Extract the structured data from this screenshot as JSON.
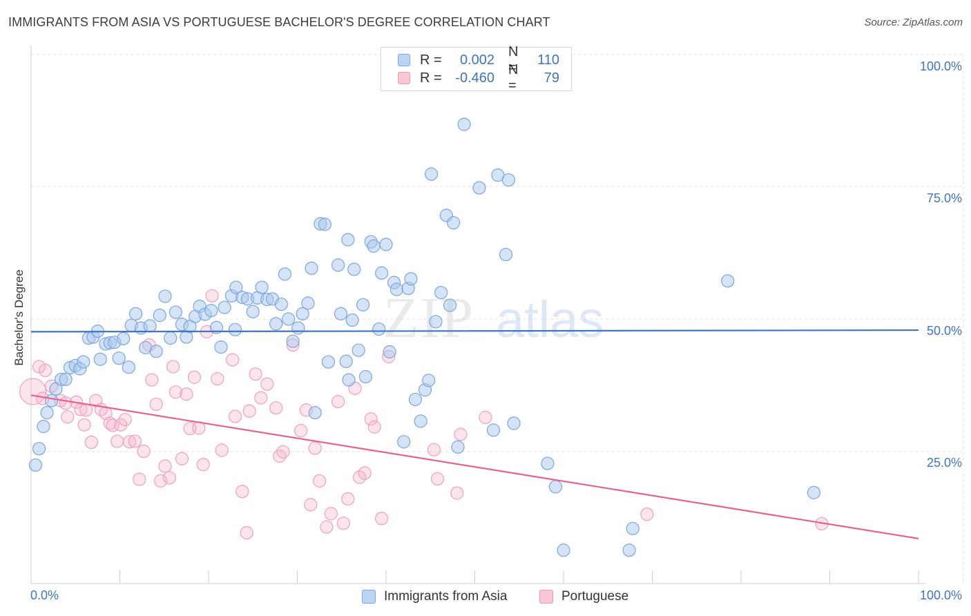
{
  "header": {
    "title": "IMMIGRANTS FROM ASIA VS PORTUGUESE BACHELOR'S DEGREE CORRELATION CHART",
    "source": "Source: ZipAtlas.com"
  },
  "legend": {
    "rows": [
      {
        "r_label": "R =",
        "r_value": "0.002",
        "n_label": "N =",
        "n_value": "110"
      },
      {
        "r_label": "R =",
        "r_value": "-0.460",
        "n_label": "N =",
        "n_value": "79"
      }
    ]
  },
  "bottom_legend": {
    "series1": "Immigrants from Asia",
    "series2": "Portuguese"
  },
  "axis": {
    "y_label": "Bachelor's Degree",
    "y_ticks": [
      "100.0%",
      "75.0%",
      "50.0%",
      "25.0%"
    ],
    "x_min_label": "0.0%",
    "x_max_label": "100.0%"
  },
  "colors": {
    "blue": "#3d74c9",
    "pink": "#e8608f"
  },
  "chart_data": {
    "type": "scatter",
    "title": "IMMIGRANTS FROM ASIA VS PORTUGUESE BACHELOR'S DEGREE CORRELATION CHART",
    "xlabel": "",
    "ylabel": "Bachelor's Degree",
    "xlim": [
      0,
      100
    ],
    "ylim": [
      0,
      100
    ],
    "series": [
      {
        "name": "Immigrants from Asia",
        "color": "#3d74c9",
        "r": 0.002,
        "n": 110,
        "trend": {
          "x": [
            0,
            100
          ],
          "y": [
            47.6,
            47.9
          ]
        },
        "points": [
          [
            0.5,
            22.4
          ],
          [
            0.9,
            25.5
          ],
          [
            1.4,
            29.7
          ],
          [
            1.8,
            32.3
          ],
          [
            2.3,
            34.6
          ],
          [
            2.8,
            36.8
          ],
          [
            3.4,
            38.6
          ],
          [
            3.9,
            38.6
          ],
          [
            4.4,
            40.8
          ],
          [
            5.0,
            41.2
          ],
          [
            5.5,
            40.6
          ],
          [
            5.9,
            41.9
          ],
          [
            6.5,
            46.4
          ],
          [
            7.0,
            46.6
          ],
          [
            7.5,
            47.7
          ],
          [
            7.8,
            42.4
          ],
          [
            8.4,
            45.3
          ],
          [
            8.9,
            45.5
          ],
          [
            9.4,
            45.6
          ],
          [
            9.9,
            42.6
          ],
          [
            10.4,
            46.3
          ],
          [
            11.0,
            40.9
          ],
          [
            11.3,
            48.8
          ],
          [
            11.8,
            51.0
          ],
          [
            12.4,
            48.3
          ],
          [
            12.9,
            44.6
          ],
          [
            13.4,
            48.7
          ],
          [
            14.1,
            43.9
          ],
          [
            14.5,
            50.7
          ],
          [
            15.1,
            54.3
          ],
          [
            15.7,
            46.4
          ],
          [
            16.3,
            51.3
          ],
          [
            17.0,
            49.0
          ],
          [
            17.5,
            46.6
          ],
          [
            17.9,
            48.6
          ],
          [
            18.5,
            50.5
          ],
          [
            19.0,
            52.4
          ],
          [
            19.6,
            50.9
          ],
          [
            20.3,
            51.6
          ],
          [
            20.9,
            48.4
          ],
          [
            21.4,
            44.7
          ],
          [
            21.8,
            52.2
          ],
          [
            22.6,
            54.4
          ],
          [
            23.1,
            56.0
          ],
          [
            23.8,
            54.1
          ],
          [
            24.4,
            53.8
          ],
          [
            25.0,
            51.4
          ],
          [
            25.5,
            54.0
          ],
          [
            26.0,
            56.0
          ],
          [
            26.6,
            53.7
          ],
          [
            27.2,
            53.8
          ],
          [
            27.6,
            49.1
          ],
          [
            28.2,
            52.8
          ],
          [
            28.6,
            58.5
          ],
          [
            29.5,
            45.8
          ],
          [
            30.1,
            48.3
          ],
          [
            30.6,
            51.0
          ],
          [
            31.2,
            53.0
          ],
          [
            31.6,
            59.6
          ],
          [
            32.0,
            32.3
          ],
          [
            32.6,
            68.0
          ],
          [
            33.1,
            67.9
          ],
          [
            33.5,
            41.9
          ],
          [
            34.6,
            60.2
          ],
          [
            34.9,
            51.0
          ],
          [
            35.5,
            42.0
          ],
          [
            35.8,
            38.5
          ],
          [
            36.4,
            59.4
          ],
          [
            36.9,
            44.1
          ],
          [
            37.4,
            52.7
          ],
          [
            37.7,
            39.1
          ],
          [
            38.3,
            64.6
          ],
          [
            38.6,
            63.8
          ],
          [
            39.2,
            48.1
          ],
          [
            39.5,
            58.7
          ],
          [
            40.0,
            64.1
          ],
          [
            40.4,
            43.8
          ],
          [
            40.9,
            56.9
          ],
          [
            41.2,
            55.6
          ],
          [
            42.0,
            26.8
          ],
          [
            42.5,
            55.8
          ],
          [
            42.8,
            57.6
          ],
          [
            43.3,
            34.8
          ],
          [
            43.9,
            30.7
          ],
          [
            44.4,
            36.6
          ],
          [
            44.8,
            38.4
          ],
          [
            45.1,
            77.4
          ],
          [
            45.6,
            49.5
          ],
          [
            46.2,
            55.0
          ],
          [
            46.8,
            69.6
          ],
          [
            47.2,
            52.6
          ],
          [
            47.6,
            68.2
          ],
          [
            48.1,
            25.8
          ],
          [
            48.8,
            86.8
          ],
          [
            50.5,
            74.8
          ],
          [
            52.1,
            29.0
          ],
          [
            52.6,
            77.2
          ],
          [
            53.5,
            62.2
          ],
          [
            53.8,
            76.3
          ],
          [
            54.4,
            30.3
          ],
          [
            58.2,
            22.7
          ],
          [
            59.1,
            18.3
          ],
          [
            67.4,
            6.3
          ],
          [
            67.8,
            10.4
          ],
          [
            78.5,
            57.2
          ],
          [
            88.2,
            17.2
          ],
          [
            60.0,
            6.3
          ],
          [
            35.7,
            65.0
          ],
          [
            36.2,
            49.8
          ],
          [
            29.0,
            50.0
          ],
          [
            23.0,
            48.0
          ]
        ]
      },
      {
        "name": "Portuguese",
        "color": "#e8608f",
        "r": -0.46,
        "n": 79,
        "trend": {
          "x": [
            0,
            100
          ],
          "y": [
            35.6,
            8.5
          ]
        },
        "points": [
          [
            0.2,
            36.3
          ],
          [
            0.9,
            41.0
          ],
          [
            1.6,
            40.3
          ],
          [
            2.3,
            37.3
          ],
          [
            3.3,
            34.6
          ],
          [
            3.9,
            34.1
          ],
          [
            4.1,
            31.5
          ],
          [
            5.1,
            34.3
          ],
          [
            5.6,
            32.9
          ],
          [
            6.2,
            32.8
          ],
          [
            6.8,
            26.7
          ],
          [
            7.3,
            34.6
          ],
          [
            7.9,
            32.9
          ],
          [
            8.4,
            32.2
          ],
          [
            8.9,
            30.3
          ],
          [
            9.2,
            29.9
          ],
          [
            9.7,
            26.9
          ],
          [
            10.1,
            30.0
          ],
          [
            10.6,
            31.0
          ],
          [
            11.1,
            26.8
          ],
          [
            11.7,
            26.9
          ],
          [
            12.2,
            19.7
          ],
          [
            12.7,
            25.0
          ],
          [
            13.3,
            45.1
          ],
          [
            13.6,
            38.5
          ],
          [
            14.1,
            33.9
          ],
          [
            14.6,
            19.4
          ],
          [
            15.1,
            22.2
          ],
          [
            15.6,
            20.0
          ],
          [
            16.0,
            41.0
          ],
          [
            16.3,
            36.2
          ],
          [
            17.0,
            23.6
          ],
          [
            17.5,
            35.8
          ],
          [
            17.9,
            29.3
          ],
          [
            18.4,
            39.0
          ],
          [
            18.9,
            29.4
          ],
          [
            19.4,
            22.5
          ],
          [
            19.8,
            47.6
          ],
          [
            20.4,
            54.4
          ],
          [
            21.0,
            38.7
          ],
          [
            21.5,
            25.2
          ],
          [
            22.7,
            42.3
          ],
          [
            23.0,
            31.6
          ],
          [
            23.8,
            17.4
          ],
          [
            24.3,
            9.6
          ],
          [
            24.6,
            32.6
          ],
          [
            25.3,
            39.6
          ],
          [
            25.9,
            35.1
          ],
          [
            26.6,
            37.7
          ],
          [
            27.6,
            33.2
          ],
          [
            28.0,
            24.1
          ],
          [
            28.4,
            24.9
          ],
          [
            29.5,
            45.1
          ],
          [
            30.4,
            28.9
          ],
          [
            31.0,
            32.8
          ],
          [
            31.5,
            14.9
          ],
          [
            32.0,
            25.6
          ],
          [
            32.5,
            19.4
          ],
          [
            33.3,
            10.7
          ],
          [
            33.8,
            13.2
          ],
          [
            34.6,
            34.4
          ],
          [
            35.2,
            11.4
          ],
          [
            35.7,
            16.0
          ],
          [
            36.5,
            36.9
          ],
          [
            37.0,
            20.1
          ],
          [
            37.6,
            20.9
          ],
          [
            38.3,
            31.1
          ],
          [
            38.7,
            29.6
          ],
          [
            39.5,
            12.3
          ],
          [
            40.3,
            42.9
          ],
          [
            45.4,
            25.3
          ],
          [
            45.8,
            19.8
          ],
          [
            48.0,
            17.1
          ],
          [
            48.4,
            28.2
          ],
          [
            51.2,
            31.4
          ],
          [
            69.4,
            13.1
          ],
          [
            89.1,
            11.3
          ],
          [
            1.3,
            35.0
          ],
          [
            6.0,
            30.0
          ]
        ]
      }
    ]
  }
}
